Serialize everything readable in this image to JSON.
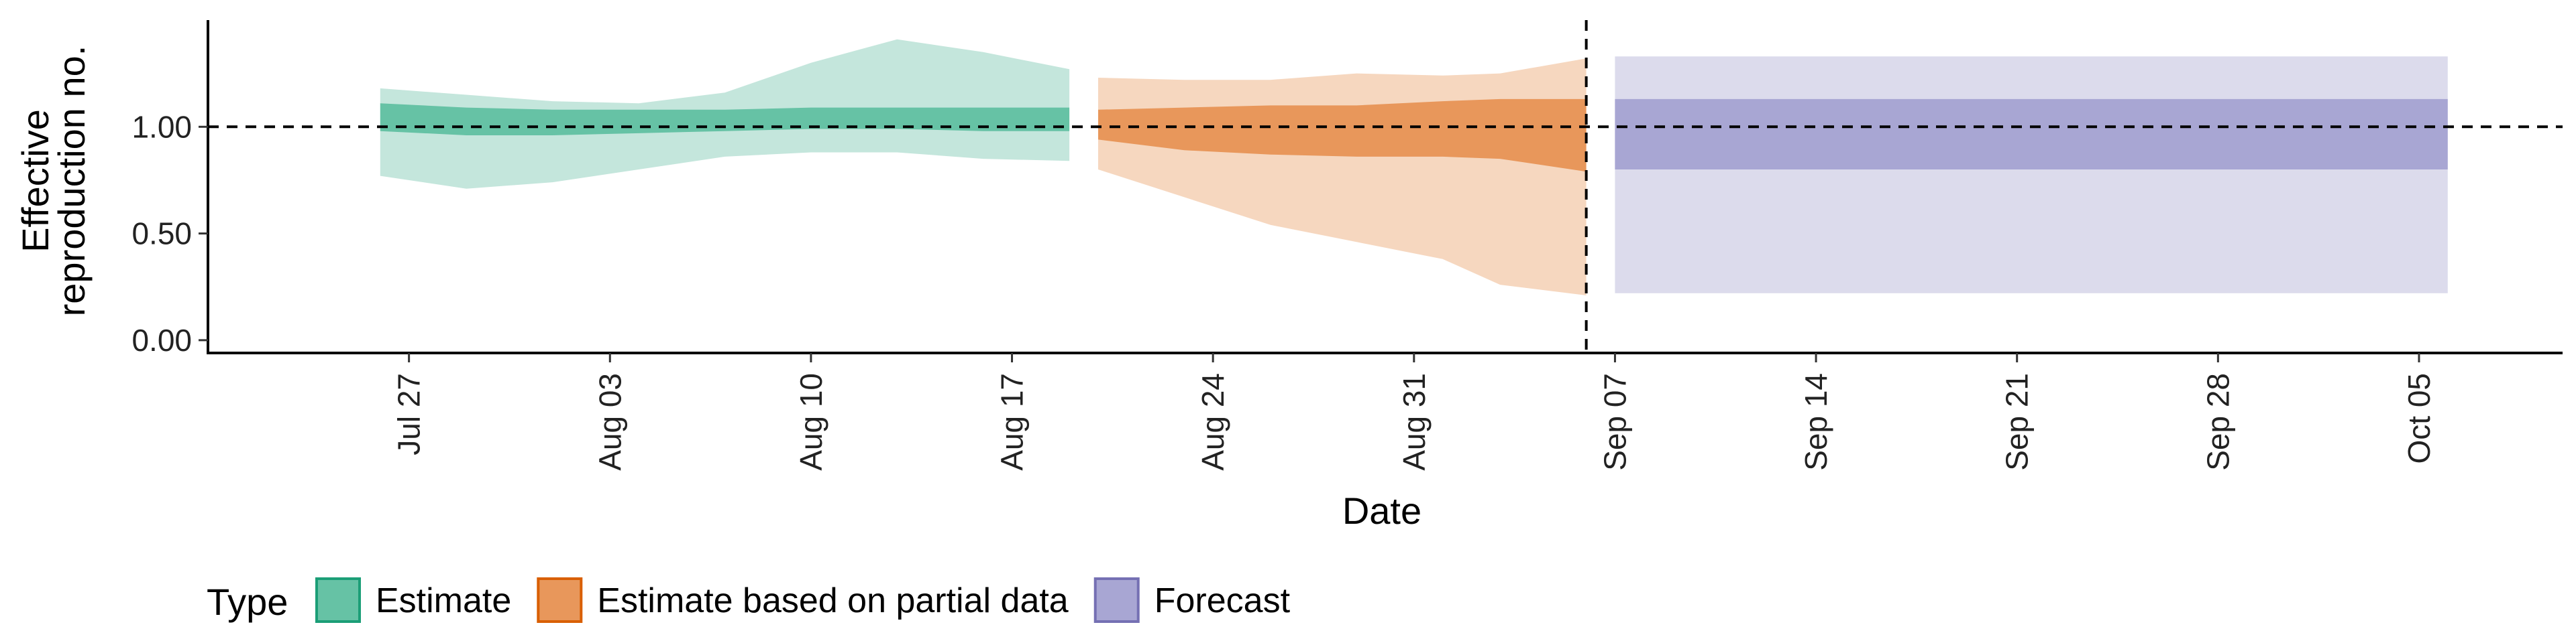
{
  "chart_data": {
    "type": "area",
    "title": "",
    "xlabel": "Date",
    "ylabel_lines": [
      "Effective",
      "reproduction no."
    ],
    "x_range": [
      "2020-07-20",
      "2020-10-10"
    ],
    "y_range": [
      -0.06,
      1.5
    ],
    "y_ticks": [
      {
        "value": 0.0,
        "label": "0.00"
      },
      {
        "value": 0.5,
        "label": "0.50"
      },
      {
        "value": 1.0,
        "label": "1.00"
      }
    ],
    "x_ticks": [
      {
        "date": "2020-07-27",
        "label": "Jul 27"
      },
      {
        "date": "2020-08-03",
        "label": "Aug 03"
      },
      {
        "date": "2020-08-10",
        "label": "Aug 10"
      },
      {
        "date": "2020-08-17",
        "label": "Aug 17"
      },
      {
        "date": "2020-08-24",
        "label": "Aug 24"
      },
      {
        "date": "2020-08-31",
        "label": "Aug 31"
      },
      {
        "date": "2020-09-07",
        "label": "Sep 07"
      },
      {
        "date": "2020-09-14",
        "label": "Sep 14"
      },
      {
        "date": "2020-09-21",
        "label": "Sep 21"
      },
      {
        "date": "2020-09-28",
        "label": "Sep 28"
      },
      {
        "date": "2020-10-05",
        "label": "Oct 05"
      }
    ],
    "reference_line_y": 1.0,
    "vertical_line_date": "2020-09-06",
    "grid": false,
    "legend": {
      "title": "Type",
      "position": "bottom-left",
      "entries": [
        "Estimate",
        "Estimate based on partial data",
        "Forecast"
      ]
    },
    "series": [
      {
        "name": "Estimate",
        "fill": "#66c2a5",
        "outer_fill": "#c4e6dc",
        "points": [
          {
            "date": "2020-07-26",
            "lo90": 0.77,
            "lo50": 0.98,
            "hi50": 1.11,
            "hi90": 1.18
          },
          {
            "date": "2020-07-29",
            "lo90": 0.71,
            "lo50": 0.96,
            "hi50": 1.09,
            "hi90": 1.15
          },
          {
            "date": "2020-08-01",
            "lo90": 0.74,
            "lo50": 0.96,
            "hi50": 1.08,
            "hi90": 1.12
          },
          {
            "date": "2020-08-04",
            "lo90": 0.8,
            "lo50": 0.97,
            "hi50": 1.08,
            "hi90": 1.11
          },
          {
            "date": "2020-08-07",
            "lo90": 0.86,
            "lo50": 0.98,
            "hi50": 1.08,
            "hi90": 1.16
          },
          {
            "date": "2020-08-10",
            "lo90": 0.88,
            "lo50": 0.99,
            "hi50": 1.09,
            "hi90": 1.3
          },
          {
            "date": "2020-08-13",
            "lo90": 0.88,
            "lo50": 0.99,
            "hi50": 1.09,
            "hi90": 1.41
          },
          {
            "date": "2020-08-16",
            "lo90": 0.85,
            "lo50": 0.98,
            "hi50": 1.09,
            "hi90": 1.35
          },
          {
            "date": "2020-08-19",
            "lo90": 0.84,
            "lo50": 0.98,
            "hi50": 1.09,
            "hi90": 1.27
          }
        ]
      },
      {
        "name": "Estimate based on partial data",
        "fill": "#e8975b",
        "outer_fill": "#f6d7bf",
        "points": [
          {
            "date": "2020-08-20",
            "lo90": 0.8,
            "lo50": 0.94,
            "hi50": 1.08,
            "hi90": 1.23
          },
          {
            "date": "2020-08-23",
            "lo90": 0.67,
            "lo50": 0.89,
            "hi50": 1.09,
            "hi90": 1.22
          },
          {
            "date": "2020-08-26",
            "lo90": 0.54,
            "lo50": 0.87,
            "hi50": 1.1,
            "hi90": 1.22
          },
          {
            "date": "2020-08-29",
            "lo90": 0.46,
            "lo50": 0.86,
            "hi50": 1.1,
            "hi90": 1.25
          },
          {
            "date": "2020-09-01",
            "lo90": 0.38,
            "lo50": 0.86,
            "hi50": 1.12,
            "hi90": 1.24
          },
          {
            "date": "2020-09-03",
            "lo90": 0.26,
            "lo50": 0.85,
            "hi50": 1.13,
            "hi90": 1.25
          },
          {
            "date": "2020-09-06",
            "lo90": 0.21,
            "lo50": 0.79,
            "hi50": 1.13,
            "hi90": 1.32
          }
        ]
      },
      {
        "name": "Forecast",
        "fill": "#a8a6d3",
        "outer_fill": "#dcdbec",
        "points": [
          {
            "date": "2020-09-07",
            "lo90": 0.22,
            "lo50": 0.8,
            "hi50": 1.13,
            "hi90": 1.33
          },
          {
            "date": "2020-10-06",
            "lo90": 0.22,
            "lo50": 0.8,
            "hi50": 1.13,
            "hi90": 1.33
          }
        ]
      }
    ]
  }
}
